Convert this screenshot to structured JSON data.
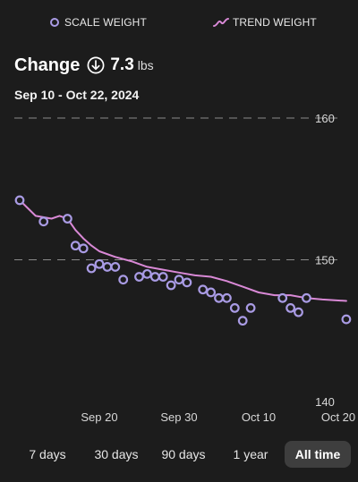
{
  "legend": {
    "scale_label": "SCALE WEIGHT",
    "trend_label": "TREND WEIGHT",
    "scale_color": "#a99be4",
    "trend_color": "#d989d6"
  },
  "summary": {
    "change_label": "Change",
    "change_icon": "arrow-down-circle-icon",
    "change_value": "7.3",
    "change_unit": "lbs",
    "date_range": "Sep 10 - Oct 22, 2024"
  },
  "range_tabs": [
    {
      "label": "7 days",
      "selected": false
    },
    {
      "label": "30 days",
      "selected": false
    },
    {
      "label": "90 days",
      "selected": false
    },
    {
      "label": "1 year",
      "selected": false
    },
    {
      "label": "All time",
      "selected": true
    }
  ],
  "chart_data": {
    "type": "line",
    "title": "",
    "xlabel": "",
    "ylabel": "",
    "ylim": [
      140,
      160
    ],
    "y_ticks": [
      "160",
      "150",
      "140"
    ],
    "x_ticks": [
      {
        "label": "Sep 20",
        "date": "2024-09-20"
      },
      {
        "label": "Sep 30",
        "date": "2024-09-30"
      },
      {
        "label": "Oct 10",
        "date": "2024-10-10"
      },
      {
        "label": "Oct 20",
        "date": "2024-10-20"
      }
    ],
    "xlim": [
      "2024-09-10",
      "2024-10-20"
    ],
    "grid": "dashed at 150 and 160",
    "series": [
      {
        "name": "SCALE WEIGHT",
        "style": "points",
        "points": [
          {
            "x": "2024-09-10",
            "y": 154.2
          },
          {
            "x": "2024-09-13",
            "y": 152.7
          },
          {
            "x": "2024-09-16",
            "y": 152.9
          },
          {
            "x": "2024-09-17",
            "y": 151.0
          },
          {
            "x": "2024-09-18",
            "y": 150.8
          },
          {
            "x": "2024-09-19",
            "y": 149.4
          },
          {
            "x": "2024-09-20",
            "y": 149.7
          },
          {
            "x": "2024-09-21",
            "y": 149.5
          },
          {
            "x": "2024-09-22",
            "y": 149.5
          },
          {
            "x": "2024-09-23",
            "y": 148.6
          },
          {
            "x": "2024-09-25",
            "y": 148.8
          },
          {
            "x": "2024-09-26",
            "y": 149.0
          },
          {
            "x": "2024-09-27",
            "y": 148.8
          },
          {
            "x": "2024-09-28",
            "y": 148.8
          },
          {
            "x": "2024-09-29",
            "y": 148.2
          },
          {
            "x": "2024-09-30",
            "y": 148.6
          },
          {
            "x": "2024-10-01",
            "y": 148.4
          },
          {
            "x": "2024-10-03",
            "y": 147.9
          },
          {
            "x": "2024-10-04",
            "y": 147.7
          },
          {
            "x": "2024-10-05",
            "y": 147.3
          },
          {
            "x": "2024-10-06",
            "y": 147.3
          },
          {
            "x": "2024-10-07",
            "y": 146.6
          },
          {
            "x": "2024-10-08",
            "y": 145.7
          },
          {
            "x": "2024-10-09",
            "y": 146.6
          },
          {
            "x": "2024-10-13",
            "y": 147.3
          },
          {
            "x": "2024-10-14",
            "y": 146.6
          },
          {
            "x": "2024-10-15",
            "y": 146.3
          },
          {
            "x": "2024-10-16",
            "y": 147.3
          },
          {
            "x": "2024-10-21",
            "y": 145.8
          }
        ]
      },
      {
        "name": "TREND WEIGHT",
        "style": "line",
        "points": [
          {
            "x": "2024-09-10",
            "y": 154.2
          },
          {
            "x": "2024-09-12",
            "y": 153.1
          },
          {
            "x": "2024-09-14",
            "y": 152.9
          },
          {
            "x": "2024-09-15",
            "y": 153.1
          },
          {
            "x": "2024-09-16",
            "y": 152.9
          },
          {
            "x": "2024-09-17",
            "y": 152.1
          },
          {
            "x": "2024-09-18",
            "y": 151.5
          },
          {
            "x": "2024-09-19",
            "y": 151.0
          },
          {
            "x": "2024-09-20",
            "y": 150.6
          },
          {
            "x": "2024-09-22",
            "y": 150.2
          },
          {
            "x": "2024-09-24",
            "y": 149.9
          },
          {
            "x": "2024-09-26",
            "y": 149.5
          },
          {
            "x": "2024-09-28",
            "y": 149.3
          },
          {
            "x": "2024-09-30",
            "y": 149.1
          },
          {
            "x": "2024-10-02",
            "y": 148.9
          },
          {
            "x": "2024-10-04",
            "y": 148.8
          },
          {
            "x": "2024-10-06",
            "y": 148.5
          },
          {
            "x": "2024-10-08",
            "y": 148.1
          },
          {
            "x": "2024-10-10",
            "y": 147.7
          },
          {
            "x": "2024-10-12",
            "y": 147.5
          },
          {
            "x": "2024-10-14",
            "y": 147.5
          },
          {
            "x": "2024-10-16",
            "y": 147.3
          },
          {
            "x": "2024-10-18",
            "y": 147.2
          },
          {
            "x": "2024-10-21",
            "y": 147.1
          }
        ]
      }
    ]
  }
}
